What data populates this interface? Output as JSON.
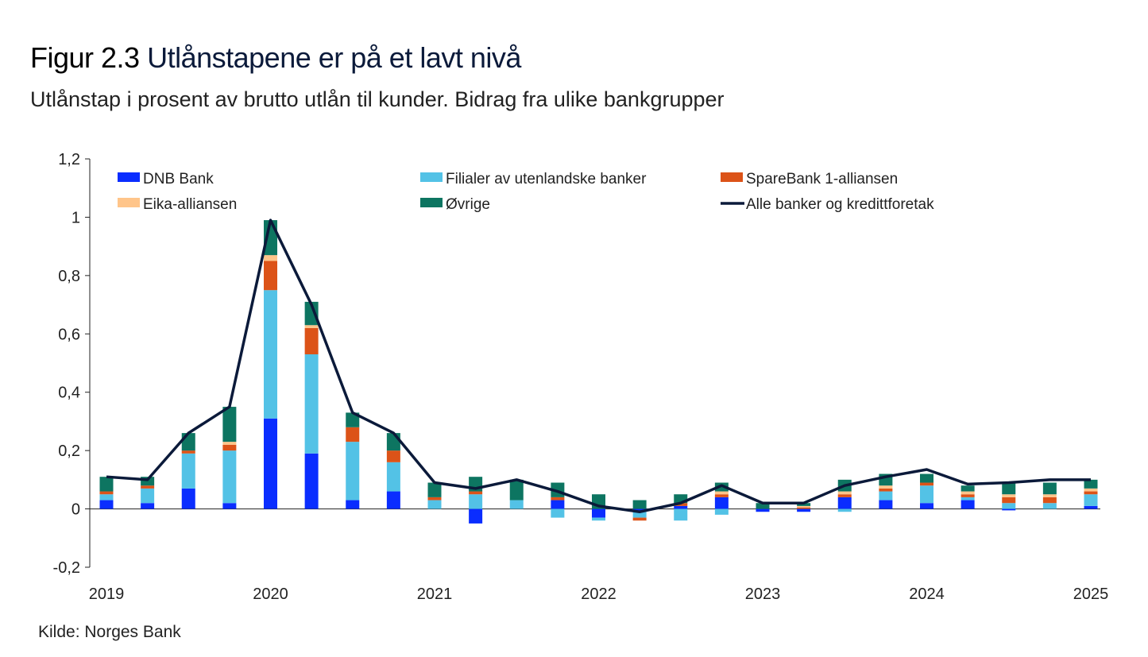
{
  "header": {
    "figure_number": "Figur 2.3",
    "title": "Utlånstapene er på et lavt nivå",
    "subtitle": "Utlånstap i prosent av brutto utlån til kunder. Bidrag fra ulike bankgrupper"
  },
  "footer": {
    "source": "Kilde: Norges Bank"
  },
  "colors": {
    "DNB Bank": "#0a2dff",
    "Filialer av utenlandske banker": "#53c2e6",
    "SpareBank 1-alliansen": "#dc5318",
    "Eika-alliansen": "#ffc58a",
    "Øvrige": "#0d7561",
    "Alle banker og kredittforetak": "#0b1a3a"
  },
  "chart_data": {
    "type": "bar",
    "stacked": true,
    "x": [
      "2019 Q1",
      "2019 Q2",
      "2019 Q3",
      "2019 Q4",
      "2020 Q1",
      "2020 Q2",
      "2020 Q3",
      "2020 Q4",
      "2021 Q1",
      "2021 Q2",
      "2021 Q3",
      "2021 Q4",
      "2022 Q1",
      "2022 Q2",
      "2022 Q3",
      "2022 Q4",
      "2023 Q1",
      "2023 Q2",
      "2023 Q3",
      "2023 Q4",
      "2024 Q1",
      "2024 Q2",
      "2024 Q3",
      "2024 Q4",
      "2025 Q1"
    ],
    "x_tick_labels": [
      "2019",
      "2020",
      "2021",
      "2022",
      "2023",
      "2024",
      "2025"
    ],
    "y_tick_labels": [
      "1,2",
      "1",
      "0,8",
      "0,6",
      "0,4",
      "0,2",
      "0",
      "-0,2"
    ],
    "ylim": [
      -0.2,
      1.2
    ],
    "legend_position": "top",
    "series": [
      {
        "name": "DNB Bank",
        "values": [
          0.03,
          0.02,
          0.07,
          0.02,
          0.31,
          0.19,
          0.03,
          0.06,
          0.0,
          -0.05,
          0.0,
          0.03,
          -0.03,
          -0.01,
          0.01,
          0.04,
          -0.01,
          -0.01,
          0.04,
          0.03,
          0.02,
          0.03,
          -0.005,
          0.0,
          0.01
        ]
      },
      {
        "name": "Filialer av utenlandske banker",
        "values": [
          0.02,
          0.05,
          0.12,
          0.18,
          0.44,
          0.34,
          0.2,
          0.1,
          0.03,
          0.05,
          0.03,
          -0.03,
          -0.01,
          -0.02,
          -0.04,
          -0.02,
          0.0,
          0.0,
          -0.01,
          0.03,
          0.06,
          0.01,
          0.02,
          0.02,
          0.04
        ]
      },
      {
        "name": "SpareBank 1-alliansen",
        "values": [
          0.01,
          0.01,
          0.01,
          0.02,
          0.1,
          0.09,
          0.05,
          0.04,
          0.01,
          0.01,
          0.0,
          0.01,
          0.0,
          -0.01,
          0.01,
          0.01,
          0.0,
          0.005,
          0.01,
          0.01,
          0.01,
          0.01,
          0.02,
          0.02,
          0.01
        ]
      },
      {
        "name": "Eika-alliansen",
        "values": [
          0.0,
          0.0,
          0.0,
          0.01,
          0.02,
          0.01,
          0.0,
          0.0,
          0.0,
          0.0,
          0.0,
          0.0,
          0.0,
          0.0,
          0.0,
          0.01,
          0.0,
          0.005,
          0.01,
          0.01,
          0.0,
          0.01,
          0.01,
          0.01,
          0.01
        ]
      },
      {
        "name": "Øvrige",
        "values": [
          0.05,
          0.03,
          0.06,
          0.12,
          0.12,
          0.08,
          0.05,
          0.06,
          0.05,
          0.05,
          0.07,
          0.05,
          0.05,
          0.03,
          0.03,
          0.03,
          0.02,
          0.01,
          0.04,
          0.04,
          0.03,
          0.02,
          0.04,
          0.04,
          0.03
        ]
      }
    ],
    "line": {
      "name": "Alle banker og kredittforetak",
      "values": [
        0.11,
        0.1,
        0.26,
        0.35,
        0.99,
        0.7,
        0.33,
        0.26,
        0.09,
        0.07,
        0.1,
        0.06,
        0.01,
        -0.01,
        0.02,
        0.08,
        0.02,
        0.02,
        0.08,
        0.11,
        0.135,
        0.085,
        0.09,
        0.1,
        0.1
      ]
    }
  }
}
